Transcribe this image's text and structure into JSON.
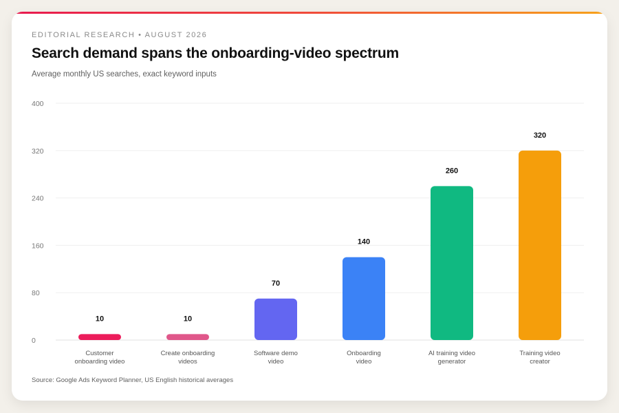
{
  "header": {
    "kicker": "EDITORIAL RESEARCH • AUGUST 2026",
    "title": "Search demand spans the onboarding-video spectrum",
    "subtitle": "Average monthly US searches, exact keyword inputs"
  },
  "footer": {
    "source": "Source: Google Ads Keyword Planner, US English historical averages"
  },
  "chart_data": {
    "type": "bar",
    "categories": [
      [
        "Customer",
        "onboarding video"
      ],
      [
        "Create onboarding",
        "videos"
      ],
      [
        "Software demo",
        "video"
      ],
      [
        "Onboarding",
        "video"
      ],
      [
        "AI training video",
        "generator"
      ],
      [
        "Training video",
        "creator"
      ]
    ],
    "values": [
      10,
      10,
      70,
      140,
      260,
      320
    ],
    "colors": [
      "#ec1c5b",
      "#e0578a",
      "#6366f1",
      "#3b82f6",
      "#10b981",
      "#f59e0b"
    ],
    "ylim": [
      0,
      400
    ],
    "yticks": [
      0,
      80,
      160,
      240,
      320,
      400
    ],
    "grid": true,
    "legend": "none"
  }
}
